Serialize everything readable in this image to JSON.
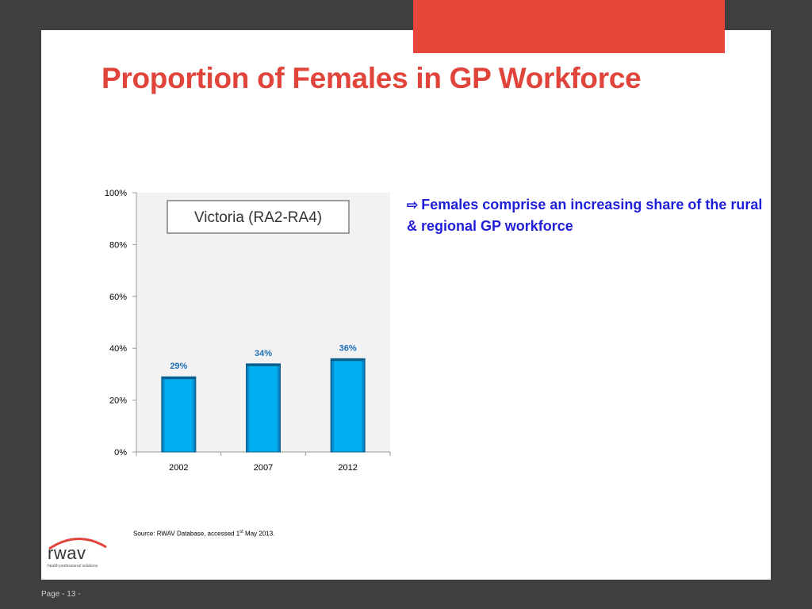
{
  "slide": {
    "title": "Proportion of Females in GP Workforce",
    "callout": "Females comprise an increasing share of the rural & regional GP workforce",
    "callout_icon": "arrow-right-outline-icon",
    "source_prefix": "Source: RWAV Database, accessed  1",
    "source_sup": "st",
    "source_suffix": " May 2013.",
    "page": "Page - 13 -",
    "accent_color": "#e8463a",
    "title_color": "#e0443a",
    "callout_color": "#1f1fd8"
  },
  "logo": {
    "wordmark": "rwav",
    "tagline": "health professional solutions"
  },
  "chart_data": {
    "type": "bar",
    "title": "Victoria (RA2-RA4)",
    "categories": [
      "2002",
      "2007",
      "2012"
    ],
    "values": [
      29,
      34,
      36
    ],
    "data_labels": [
      "29%",
      "34%",
      "36%"
    ],
    "ylim": [
      0,
      100
    ],
    "yticks": [
      "0%",
      "20%",
      "40%",
      "60%",
      "80%",
      "100%"
    ],
    "xlabel": "",
    "ylabel": "",
    "grid": false,
    "bar_color": "#00b0f0",
    "label_color": "#1f6fb5",
    "plot_bg": "#f2f2f2"
  }
}
